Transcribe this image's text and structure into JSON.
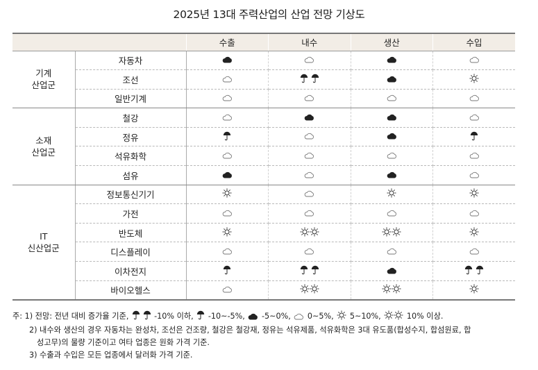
{
  "title": "2025년 13대 주력산업의 산업 전망 기상도",
  "columns": [
    "수출",
    "내수",
    "생산",
    "수입"
  ],
  "groups": [
    {
      "label_lines": [
        "기계",
        "산업군"
      ],
      "rows": [
        {
          "name": "자동차",
          "values": [
            "cloud-dark",
            "cloud",
            "cloud-dark",
            "cloud"
          ]
        },
        {
          "name": "조선",
          "values": [
            "cloud",
            "umbrella2",
            "cloud-dark",
            "sun"
          ]
        },
        {
          "name": "일반기계",
          "values": [
            "cloud",
            "cloud",
            "cloud",
            "cloud"
          ]
        }
      ]
    },
    {
      "label_lines": [
        "소재",
        "산업군"
      ],
      "rows": [
        {
          "name": "철강",
          "values": [
            "cloud",
            "cloud-dark",
            "cloud-dark",
            "cloud"
          ]
        },
        {
          "name": "정유",
          "values": [
            "umbrella",
            "cloud",
            "cloud-dark",
            "umbrella"
          ]
        },
        {
          "name": "석유화학",
          "values": [
            "cloud",
            "cloud",
            "cloud",
            "cloud"
          ]
        },
        {
          "name": "섬유",
          "values": [
            "cloud-dark",
            "cloud",
            "cloud-dark",
            "cloud"
          ]
        }
      ]
    },
    {
      "label_lines": [
        "IT",
        "신산업군"
      ],
      "rows": [
        {
          "name": "정보통신기기",
          "values": [
            "sun",
            "cloud",
            "sun",
            "sun"
          ]
        },
        {
          "name": "가전",
          "values": [
            "cloud",
            "cloud",
            "cloud",
            "cloud"
          ]
        },
        {
          "name": "반도체",
          "values": [
            "sun",
            "sun2",
            "sun2",
            "sun"
          ]
        },
        {
          "name": "디스플레이",
          "values": [
            "cloud",
            "cloud",
            "cloud",
            "cloud"
          ]
        },
        {
          "name": "이차전지",
          "values": [
            "umbrella",
            "umbrella2",
            "cloud-dark",
            "umbrella2"
          ]
        },
        {
          "name": "바이오헬스",
          "values": [
            "cloud",
            "sun2",
            "sun2",
            "sun"
          ]
        }
      ]
    }
  ],
  "notes": {
    "note1_prefix": "주: 1) 전망: 전년 대비 증가율 기준,",
    "legend": [
      {
        "icon": "umbrella2",
        "text": "-10% 이하,"
      },
      {
        "icon": "umbrella",
        "text": "-10~-5%,"
      },
      {
        "icon": "cloud-dark",
        "text": "-5~0%,"
      },
      {
        "icon": "cloud",
        "text": "0~5%,"
      },
      {
        "icon": "sun",
        "text": "5~10%,"
      },
      {
        "icon": "sun2",
        "text": "10% 이상."
      }
    ],
    "note2_line1": "2) 내수와 생산의 경우 자동차는 완성차, 조선은 건조량, 철강은 철강재, 정유는 석유제품, 석유화학은 3대 유도품(합성수지, 합섬원료, 합",
    "note2_line2": "성고무)의 물량 기준이고 여타 업종은 원화 가격 기준.",
    "note3": "3) 수출과 수입은 모든 업종에서 달러화 가격 기준."
  },
  "colors": {
    "header_bg": "#f2ede6",
    "icon": "#222222"
  }
}
